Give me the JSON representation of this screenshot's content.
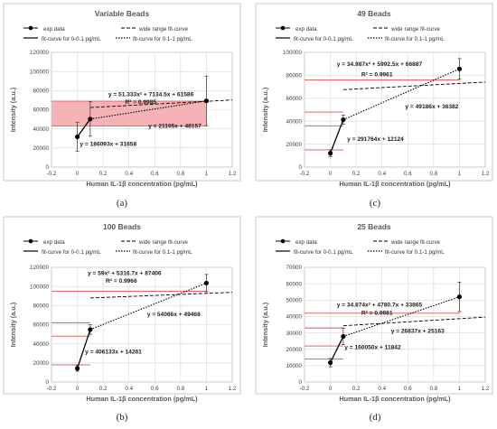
{
  "chart_data": [
    {
      "panel": "(a)",
      "type": "scatter",
      "title": "Variable Beads",
      "xlabel": "Human IL-1β concentration (pg/mL)",
      "ylabel": "Intensity (a.u.)",
      "xlim": [
        -0.2,
        1.2
      ],
      "ylim": [
        0,
        120000
      ],
      "x_ticks": [
        "-0.2",
        "0",
        "0.2",
        "0.4",
        "0.6",
        "0.8",
        "1",
        "1.2"
      ],
      "y_ticks": [
        "0",
        "20000",
        "40000",
        "60000",
        "80000",
        "100000",
        "120000"
      ],
      "legend": [
        "exp data",
        "wide range fit-curve",
        "fit-curve for 0-0.1 pg/mL",
        "fit-curve for 0.1-1 pg/mL"
      ],
      "exp_data": {
        "x": [
          0,
          0.1,
          1
        ],
        "y": [
          31658,
          50267,
          69262
        ],
        "err": [
          15000,
          18000,
          26000
        ]
      },
      "shaded_band": [
        43000,
        69000
      ],
      "wide_fit_x": [
        0.1,
        1.2
      ],
      "wide_fit_coeff": [
        51.333,
        7134.5,
        61586
      ],
      "annotations": [
        {
          "text": "y = 51.333x² + 7134.5x + 61586",
          "at": [
            0.24,
            74000
          ]
        },
        {
          "text": "R² = 0.9985",
          "at": [
            0.37,
            66000
          ]
        },
        {
          "text": "y = 21105x + 48157",
          "at": [
            0.55,
            41000
          ]
        },
        {
          "text": "y = 186093x + 31658",
          "at": [
            0.02,
            22000
          ]
        }
      ]
    },
    {
      "panel": "(c)",
      "type": "scatter",
      "title": "49 Beads",
      "xlabel": "Human IL-1β concentration (pg/mL)",
      "ylabel": "Intensity (a.u.)",
      "xlim": [
        -0.2,
        1.2
      ],
      "ylim": [
        0,
        100000
      ],
      "x_ticks": [
        "-0.2",
        "0",
        "0.2",
        "0.4",
        "0.6",
        "0.8",
        "1",
        "1.2"
      ],
      "y_ticks": [
        "0",
        "20000",
        "40000",
        "60000",
        "80000",
        "100000"
      ],
      "legend": [
        "exp data",
        "wide range fit-curve",
        "fit-curve for 0-0.1 pg/mL",
        "fit-curve for 0.1-1 pg/mL"
      ],
      "exp_data": {
        "x": [
          0,
          0.1,
          1
        ],
        "y": [
          12124,
          41300,
          85568
        ],
        "err": [
          3000,
          4000,
          9000
        ]
      },
      "h_lines": [
        76000,
        48000,
        36000,
        15000
      ],
      "wide_fit_x": [
        0.1,
        1.2
      ],
      "wide_fit_coeff": [
        34.987,
        5992.5,
        66887
      ],
      "annotations": [
        {
          "text": "y = 34.987x² + 5992.5x + 66887",
          "at": [
            0.05,
            88000
          ]
        },
        {
          "text": "R² = 0.9961",
          "at": [
            0.24,
            79000
          ]
        },
        {
          "text": "y = 49186x + 36382",
          "at": [
            0.58,
            51000
          ]
        },
        {
          "text": "y = 291764x + 12124",
          "at": [
            0.13,
            23000
          ]
        }
      ]
    },
    {
      "panel": "(b)",
      "type": "scatter",
      "title": "100 Beads",
      "xlabel": "Human IL-1β concentration (pg/mL)",
      "ylabel": "Intensity (a.u.)",
      "xlim": [
        -0.2,
        1.2
      ],
      "ylim": [
        0,
        120000
      ],
      "x_ticks": [
        "-0.2",
        "0",
        "0.2",
        "0.4",
        "0.6",
        "0.8",
        "1",
        "1.2"
      ],
      "y_ticks": [
        "0",
        "20000",
        "40000",
        "60000",
        "80000",
        "100000",
        "120000"
      ],
      "legend": [
        "exp data",
        "wide range fit-curve",
        "fit-curve for 0-0.1 pg/mL",
        "fit-curve for 0.1-1 pg/mL"
      ],
      "exp_data": {
        "x": [
          0,
          0.1,
          1
        ],
        "y": [
          14261,
          54874,
          103534
        ],
        "err": [
          3000,
          5000,
          9000
        ]
      },
      "h_lines": [
        95000,
        62000,
        48000,
        18000
      ],
      "wide_fit_x": [
        0.1,
        1.2
      ],
      "wide_fit_coeff": [
        59,
        5316.7,
        87406
      ],
      "annotations": [
        {
          "text": "y = 59x² + 5316.7x + 87406",
          "at": [
            0.08,
            112000
          ]
        },
        {
          "text": "R² = 0.9966",
          "at": [
            0.22,
            104000
          ]
        },
        {
          "text": "y = 54066x + 49468",
          "at": [
            0.54,
            69000
          ]
        },
        {
          "text": "y = 406133x + 14261",
          "at": [
            0.06,
            30000
          ]
        }
      ]
    },
    {
      "panel": "(d)",
      "type": "scatter",
      "title": "25 Beads",
      "xlabel": "Human IL-1β concentration (pg/mL)",
      "ylabel": "Intensity (a.u.)",
      "xlim": [
        -0.2,
        1.2
      ],
      "ylim": [
        0,
        70000
      ],
      "x_ticks": [
        "-0.2",
        "0",
        "0.2",
        "0.4",
        "0.6",
        "0.8",
        "1",
        "1.2"
      ],
      "y_ticks": [
        "0",
        "10000",
        "20000",
        "30000",
        "40000",
        "50000",
        "60000",
        "70000"
      ],
      "legend": [
        "exp data",
        "wide range fit-curve",
        "fit-curve for 0-0.1 pg/mL",
        "fit-curve for 0.1-1 pg/mL"
      ],
      "exp_data": {
        "x": [
          0,
          0.1,
          1
        ],
        "y": [
          11842,
          27847,
          52000
        ],
        "err": [
          2500,
          5000,
          9000
        ]
      },
      "h_lines": [
        42000,
        33000,
        22000,
        14000
      ],
      "wide_fit_x": [
        0.1,
        1.2
      ],
      "wide_fit_coeff": [
        34.874,
        4780.7,
        33865
      ],
      "annotations": [
        {
          "text": "y = 34.874x² + 4780.7x + 33865",
          "at": [
            0.05,
            46000
          ]
        },
        {
          "text": "R² = 0.9981",
          "at": [
            0.24,
            41000
          ]
        },
        {
          "text": "y = 26837x + 25163",
          "at": [
            0.47,
            30000
          ]
        },
        {
          "text": "y = 160050x + 11842",
          "at": [
            0.11,
            20000
          ]
        }
      ]
    }
  ],
  "captions": [
    "(a)",
    "(c)",
    "(b)",
    "(d)"
  ],
  "colors": {
    "red": "#d9534f",
    "band": "#f4a6aa",
    "frame": "#c8c8c8",
    "grid": "#d9d9d9"
  }
}
